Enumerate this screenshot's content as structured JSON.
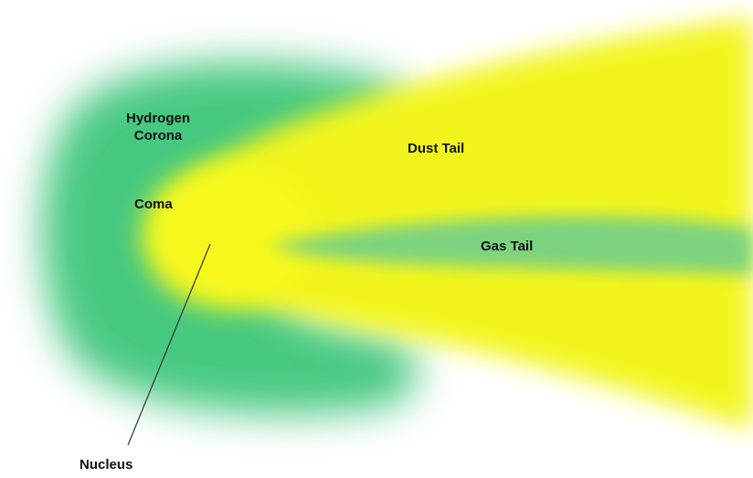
{
  "labels": {
    "hydrogen_corona_line1": "Hydrogen",
    "hydrogen_corona_line2": "Corona",
    "coma": "Coma",
    "dust_tail": "Dust Tail",
    "gas_tail": "Gas Tail",
    "nucleus": "Nucleus"
  },
  "colors": {
    "hydrogen_corona": "#3ec67a",
    "dust_tail": "#f2f51f",
    "gas_tail": "#6fcf8a",
    "pointer_line": "#333333",
    "text": "#111111"
  }
}
